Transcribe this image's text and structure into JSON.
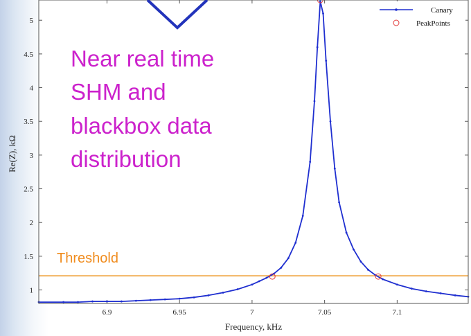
{
  "chart_data": {
    "type": "line",
    "xlabel": "Frequency, kHz",
    "ylabel": "Re(Z), kΩ",
    "xlim": [
      6.853,
      7.149
    ],
    "ylim": [
      0.8,
      5.3
    ],
    "xticks": [
      6.9,
      6.95,
      7,
      7.05,
      7.1
    ],
    "xtick_labels": [
      "6.9",
      "6.95",
      "7",
      "7.05",
      "7.1"
    ],
    "yticks": [
      1,
      1.5,
      2,
      2.5,
      3,
      3.5,
      4,
      4.5,
      5
    ],
    "ytick_labels": [
      "1",
      "1.5",
      "2",
      "2.5",
      "3",
      "3.5",
      "4",
      "4.5",
      "5"
    ],
    "legend_position": "top-right",
    "series": [
      {
        "name": "Canary",
        "color": "#1f2fd0",
        "style": "line-with-dot-markers",
        "x": [
          6.853,
          6.87,
          6.88,
          6.89,
          6.9,
          6.91,
          6.92,
          6.93,
          6.94,
          6.95,
          6.96,
          6.97,
          6.98,
          6.99,
          7.0,
          7.005,
          7.01,
          7.015,
          7.02,
          7.025,
          7.03,
          7.035,
          7.04,
          7.043,
          7.045,
          7.047,
          7.049,
          7.051,
          7.054,
          7.057,
          7.06,
          7.065,
          7.07,
          7.075,
          7.08,
          7.085,
          7.09,
          7.1,
          7.11,
          7.12,
          7.13,
          7.14,
          7.149
        ],
        "y": [
          0.82,
          0.82,
          0.82,
          0.83,
          0.83,
          0.83,
          0.84,
          0.85,
          0.86,
          0.87,
          0.89,
          0.92,
          0.96,
          1.01,
          1.08,
          1.13,
          1.18,
          1.24,
          1.33,
          1.47,
          1.7,
          2.1,
          2.9,
          3.8,
          4.6,
          5.28,
          5.1,
          4.4,
          3.5,
          2.8,
          2.3,
          1.85,
          1.6,
          1.42,
          1.3,
          1.22,
          1.16,
          1.08,
          1.02,
          0.98,
          0.95,
          0.92,
          0.9
        ]
      },
      {
        "name": "PeakPoints",
        "color": "#e23b3b",
        "style": "open-circle-markers",
        "x": [
          7.014,
          7.047,
          7.087
        ],
        "y": [
          1.2,
          5.3,
          1.2
        ]
      }
    ],
    "threshold": {
      "label": "Threshold",
      "y": 1.21,
      "color": "#f0a94a"
    },
    "annotation": {
      "lines": [
        "Near real time",
        "SHM and",
        "blackbox data",
        "distribution"
      ],
      "color": "#cc22cc"
    },
    "arrow_color": "#2233bb"
  }
}
